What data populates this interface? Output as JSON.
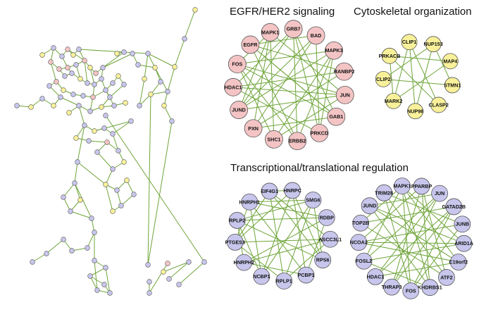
{
  "colors": {
    "edge": "#6fa53a",
    "pink": "#f4c4c4",
    "yellow": "#f8f19a",
    "lavender": "#c8c6ec",
    "outline": "#555555"
  },
  "titles": {
    "egfr": "EGFR/HER2 signaling",
    "cyto": "Cytoskeletal organization",
    "trans": "Transcriptional/translational regulation"
  },
  "clusters": {
    "egfr": {
      "color": "pink",
      "labels": [
        "MAPK1",
        "GRB7",
        "BAD",
        "MAPK3",
        "RANBP2",
        "JUN",
        "GAB1",
        "PRKCD",
        "ERBB2",
        "SHC1",
        "PXN",
        "JUND",
        "HDAC1",
        "FOS",
        "EGFR"
      ]
    },
    "cyto": {
      "color": "yellow",
      "labels": [
        "CLIP1",
        "NUP153",
        "MAP4",
        "STMN1",
        "CLASP2",
        "NUP98",
        "MARK2",
        "CLIP2",
        "PRKACB"
      ]
    },
    "trans1": {
      "color": "lavender",
      "labels": [
        "HNRPC",
        "SMG6",
        "RDBP",
        "ASCC3L1",
        "RPS6",
        "PCBP1",
        "RPLP1",
        "NCBP1",
        "HNRPH2",
        "PTGES3",
        "RPLP2",
        "HNRPH1",
        "EIF4G1"
      ]
    },
    "trans2": {
      "color": "lavender",
      "labels": [
        "MAPK1",
        "PPARBP",
        "JUN",
        "GATAD2B",
        "JUNB",
        "ARID1A",
        "C19orf2",
        "ATF2",
        "KHDRBS1",
        "FOS",
        "THRAP3",
        "HDAC1",
        "FOSL2",
        "NCOA2",
        "TOP2B",
        "JUND",
        "TRIM28"
      ]
    }
  }
}
